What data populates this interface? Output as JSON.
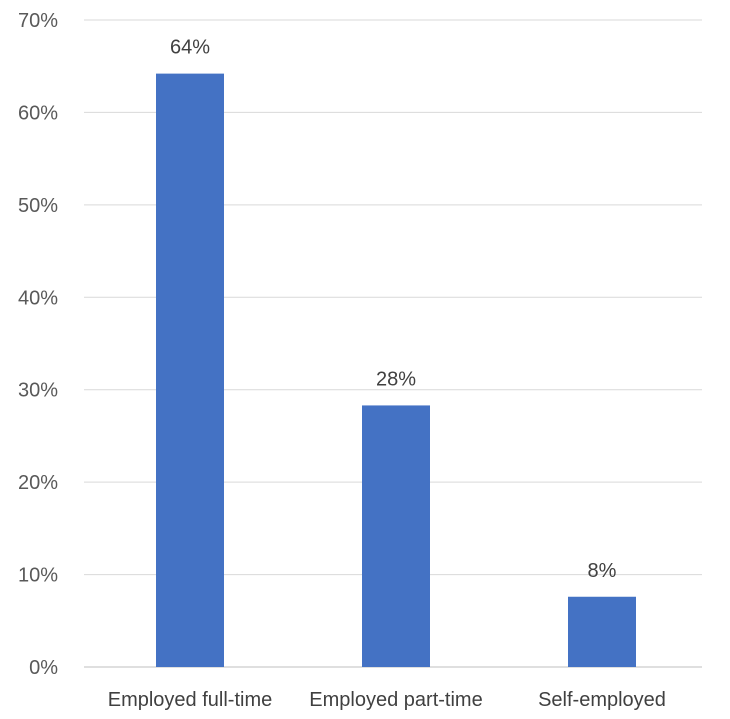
{
  "chart_data": {
    "type": "bar",
    "categories": [
      "Employed full-time",
      "Employed part-time",
      "Self-employed"
    ],
    "values": [
      64,
      28,
      8
    ],
    "bar_values_plotted": [
      64.2,
      28.3,
      7.6
    ],
    "data_labels": [
      "64%",
      "28%",
      "8%"
    ],
    "y_ticks": [
      {
        "value": 0,
        "label": "0%"
      },
      {
        "value": 10,
        "label": "10%"
      },
      {
        "value": 20,
        "label": "20%"
      },
      {
        "value": 30,
        "label": "30%"
      },
      {
        "value": 40,
        "label": "40%"
      },
      {
        "value": 50,
        "label": "50%"
      },
      {
        "value": 60,
        "label": "60%"
      },
      {
        "value": 70,
        "label": "70%"
      }
    ],
    "ylim": [
      0,
      70
    ],
    "title": "",
    "xlabel": "",
    "ylabel": "",
    "grid": true,
    "legend": "none",
    "colors": {
      "bar": "#4472C4",
      "grid": "#D9D9D9",
      "axis": "#BFBFBF"
    }
  }
}
